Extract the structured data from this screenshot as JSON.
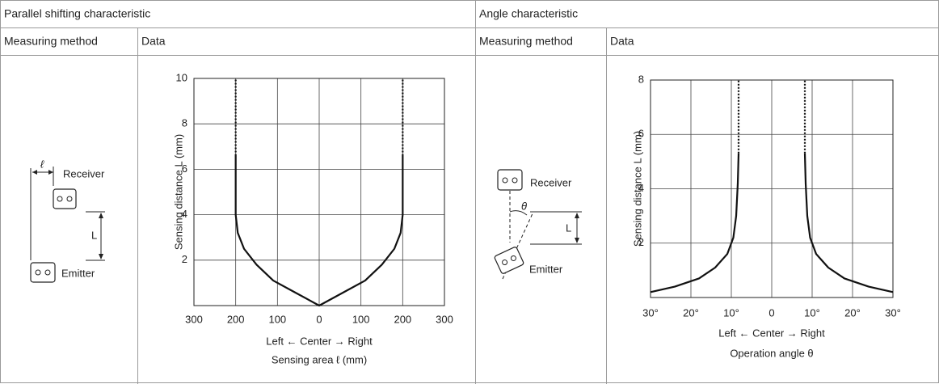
{
  "table": {
    "sections": [
      {
        "title": "Parallel shifting characteristic",
        "method_header": "Measuring method",
        "data_header": "Data",
        "diagram": {
          "receiver": "Receiver",
          "emitter": "Emitter",
          "distance": "L",
          "offset": "ℓ"
        }
      },
      {
        "title": "Angle characteristic",
        "method_header": "Measuring method",
        "data_header": "Data",
        "diagram": {
          "receiver": "Receiver",
          "emitter": "Emitter",
          "distance": "L",
          "angle": "θ"
        }
      }
    ]
  },
  "chart_data": [
    {
      "type": "line",
      "y_label": "Sensing distance L (mm)",
      "x_direction_label": "Left ←  Center  → Right",
      "x_label": "Sensing area ℓ (mm)",
      "xlim": [
        -300,
        300
      ],
      "ylim": [
        0,
        10
      ],
      "grid": true,
      "xticks": [
        {
          "value": -300,
          "label": "300"
        },
        {
          "value": -200,
          "label": "200"
        },
        {
          "value": -100,
          "label": "100"
        },
        0,
        100,
        200,
        300
      ],
      "yticks": [
        2,
        4,
        6,
        8,
        10
      ],
      "series": [
        {
          "color": "#111111",
          "style": "solid",
          "x": [
            -200,
            -200,
            -195,
            -180,
            -150,
            -110,
            -60,
            0,
            60,
            110,
            150,
            180,
            195,
            200,
            200
          ],
          "values": [
            6.6,
            4,
            3.2,
            2.5,
            1.8,
            1.1,
            0.6,
            0,
            0.6,
            1.1,
            1.8,
            2.5,
            3.2,
            4,
            6.6
          ]
        },
        {
          "color": "#111111",
          "style": "dotted",
          "x": [
            -200,
            -200
          ],
          "values": [
            6.6,
            10
          ]
        },
        {
          "color": "#111111",
          "style": "dotted",
          "x": [
            200,
            200
          ],
          "values": [
            6.6,
            10
          ]
        }
      ]
    },
    {
      "type": "line",
      "y_label": "Sensing distance L (mm)",
      "x_direction_label": "Left ←  Center  → Right",
      "x_label": "Operation angle θ",
      "xlim": [
        -30,
        30
      ],
      "ylim": [
        0,
        8
      ],
      "grid": true,
      "xticks": [
        {
          "value": -30,
          "label": "30°"
        },
        {
          "value": -20,
          "label": "20°"
        },
        {
          "value": -10,
          "label": "10°"
        },
        0,
        {
          "value": 10,
          "label": "10°"
        },
        {
          "value": 20,
          "label": "20°"
        },
        {
          "value": 30,
          "label": "30°"
        }
      ],
      "yticks": [
        2,
        4,
        6,
        8
      ],
      "series": [
        {
          "color": "#111111",
          "style": "solid",
          "x": [
            -30,
            -24,
            -18,
            -14,
            -11,
            -9.5,
            -8.8,
            -8.4,
            -8.2
          ],
          "values": [
            0.2,
            0.4,
            0.7,
            1.1,
            1.6,
            2.2,
            3,
            4.2,
            5.3
          ]
        },
        {
          "color": "#111111",
          "style": "solid",
          "x": [
            8.2,
            8.4,
            8.8,
            9.5,
            11,
            14,
            18,
            24,
            30
          ],
          "values": [
            5.3,
            4.2,
            3,
            2.2,
            1.6,
            1.1,
            0.7,
            0.4,
            0.2
          ]
        },
        {
          "color": "#111111",
          "style": "dotted",
          "x": [
            -8.2,
            -8.2
          ],
          "values": [
            5.3,
            8
          ]
        },
        {
          "color": "#111111",
          "style": "dotted",
          "x": [
            8.2,
            8.2
          ],
          "values": [
            5.3,
            8
          ]
        }
      ]
    }
  ]
}
